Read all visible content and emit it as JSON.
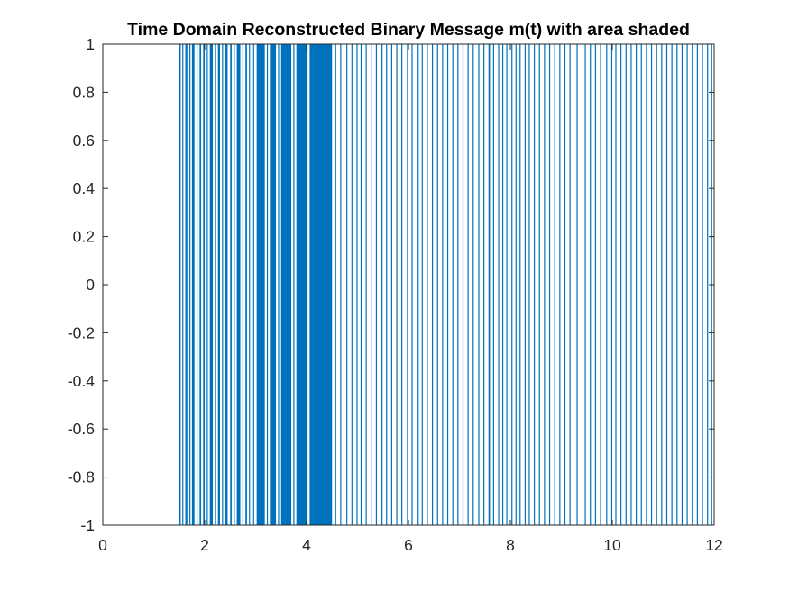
{
  "chart_data": {
    "type": "area",
    "title": "Time Domain Reconstructed Binary Message m(t) with area shaded",
    "xlabel": "",
    "ylabel": "",
    "xlim": [
      0,
      12
    ],
    "ylim": [
      -1,
      1
    ],
    "xticks": [
      0,
      2,
      4,
      6,
      8,
      10,
      12
    ],
    "yticks": [
      -1,
      -0.8,
      -0.6,
      -0.4,
      -0.2,
      0,
      0.2,
      0.4,
      0.6,
      0.8,
      1
    ],
    "xtick_labels": [
      "0",
      "2",
      "4",
      "6",
      "8",
      "10",
      "12"
    ],
    "ytick_labels": [
      "-1",
      "-0.8",
      "-0.6",
      "-0.4",
      "-0.2",
      "0",
      "0.2",
      "0.4",
      "0.6",
      "0.8",
      "1"
    ],
    "grid": false,
    "box": true,
    "color": "#0072BD",
    "baseline": -1,
    "series": [
      {
        "values_note_free": true,
        "high_value": 1,
        "low_value": -1,
        "high_intervals": [
          [
            1.5,
            1.53
          ],
          [
            1.56,
            1.58
          ],
          [
            1.62,
            1.66
          ],
          [
            1.7,
            1.72
          ],
          [
            1.75,
            1.8
          ],
          [
            1.84,
            1.86
          ],
          [
            1.9,
            1.93
          ],
          [
            1.97,
            2.0
          ],
          [
            2.04,
            2.06
          ],
          [
            2.1,
            2.16
          ],
          [
            2.2,
            2.22
          ],
          [
            2.26,
            2.3
          ],
          [
            2.34,
            2.36
          ],
          [
            2.4,
            2.45
          ],
          [
            2.5,
            2.53
          ],
          [
            2.57,
            2.59
          ],
          [
            2.63,
            2.7
          ],
          [
            2.74,
            2.76
          ],
          [
            2.8,
            2.83
          ],
          [
            2.87,
            2.89
          ],
          [
            2.95,
            2.97
          ],
          [
            3.02,
            3.18
          ],
          [
            3.22,
            3.24
          ],
          [
            3.28,
            3.4
          ],
          [
            3.44,
            3.46
          ],
          [
            3.5,
            3.7
          ],
          [
            3.74,
            3.76
          ],
          [
            3.8,
            4.02
          ],
          [
            4.06,
            4.5
          ],
          [
            4.56,
            4.57
          ],
          [
            4.66,
            4.67
          ],
          [
            4.78,
            4.8
          ],
          [
            4.88,
            4.89
          ],
          [
            4.98,
            4.99
          ],
          [
            5.06,
            5.07
          ],
          [
            5.16,
            5.18
          ],
          [
            5.27,
            5.28
          ],
          [
            5.36,
            5.37
          ],
          [
            5.47,
            5.48
          ],
          [
            5.56,
            5.58
          ],
          [
            5.66,
            5.67
          ],
          [
            5.76,
            5.77
          ],
          [
            5.86,
            5.87
          ],
          [
            5.97,
            5.99
          ],
          [
            6.06,
            6.07
          ],
          [
            6.18,
            6.19
          ],
          [
            6.26,
            6.27
          ],
          [
            6.36,
            6.38
          ],
          [
            6.46,
            6.47
          ],
          [
            6.56,
            6.57
          ],
          [
            6.66,
            6.68
          ],
          [
            6.76,
            6.77
          ],
          [
            6.86,
            6.87
          ],
          [
            6.96,
            6.97
          ],
          [
            7.06,
            7.08
          ],
          [
            7.16,
            7.17
          ],
          [
            7.26,
            7.27
          ],
          [
            7.37,
            7.38
          ],
          [
            7.47,
            7.48
          ],
          [
            7.57,
            7.6
          ],
          [
            7.66,
            7.67
          ],
          [
            7.76,
            7.78
          ],
          [
            7.84,
            7.86
          ],
          [
            7.92,
            7.94
          ],
          [
            8.02,
            8.04
          ],
          [
            8.1,
            8.12
          ],
          [
            8.18,
            8.2
          ],
          [
            8.28,
            8.3
          ],
          [
            8.36,
            8.38
          ],
          [
            8.46,
            8.48
          ],
          [
            8.56,
            8.58
          ],
          [
            8.66,
            8.68
          ],
          [
            8.76,
            8.78
          ],
          [
            8.86,
            8.88
          ],
          [
            8.96,
            8.98
          ],
          [
            9.06,
            9.08
          ],
          [
            9.16,
            9.17
          ],
          [
            9.3,
            9.31
          ],
          [
            9.46,
            9.47
          ],
          [
            9.56,
            9.58
          ],
          [
            9.66,
            9.67
          ],
          [
            9.76,
            9.78
          ],
          [
            9.88,
            9.89
          ],
          [
            9.98,
            10.0
          ],
          [
            10.06,
            10.07
          ],
          [
            10.16,
            10.17
          ],
          [
            10.26,
            10.28
          ],
          [
            10.36,
            10.38
          ],
          [
            10.46,
            10.48
          ],
          [
            10.56,
            10.58
          ],
          [
            10.66,
            10.68
          ],
          [
            10.76,
            10.78
          ],
          [
            10.86,
            10.88
          ],
          [
            10.96,
            10.98
          ],
          [
            11.06,
            11.08
          ],
          [
            11.16,
            11.18
          ],
          [
            11.26,
            11.28
          ],
          [
            11.36,
            11.38
          ],
          [
            11.46,
            11.48
          ],
          [
            11.56,
            11.58
          ],
          [
            11.66,
            11.68
          ],
          [
            11.76,
            11.78
          ],
          [
            11.86,
            11.88
          ],
          [
            11.94,
            11.96
          ]
        ]
      }
    ]
  }
}
